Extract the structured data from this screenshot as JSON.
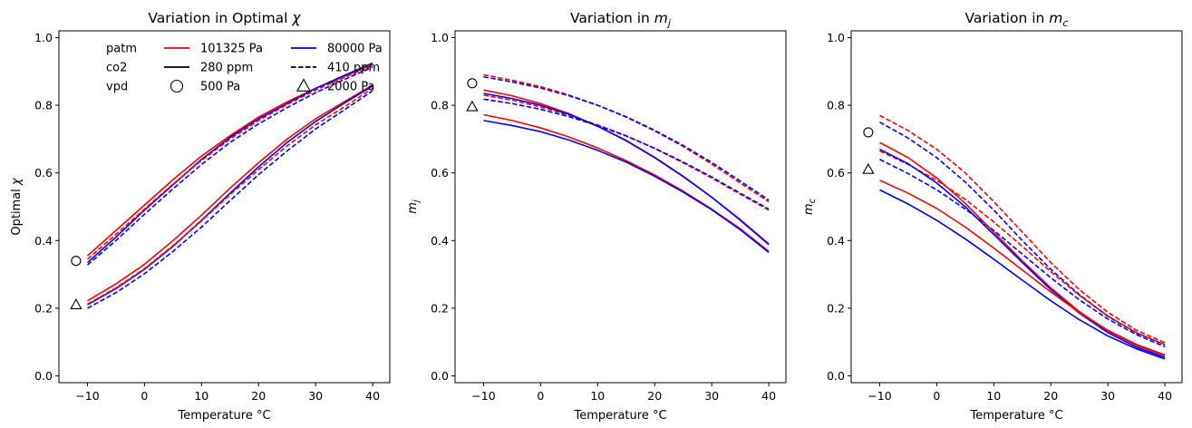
{
  "figure": {
    "x_ticks": [
      "−10",
      "0",
      "10",
      "20",
      "30",
      "40"
    ],
    "y_ticks": [
      "0.0",
      "0.2",
      "0.4",
      "0.6",
      "0.8",
      "1.0"
    ]
  },
  "legend": {
    "rows": [
      {
        "group": "patm",
        "a_label": "101325 Pa",
        "a_style": "red-line",
        "b_label": "80000 Pa",
        "b_style": "blue-line"
      },
      {
        "group": "co2",
        "a_label": "280 ppm",
        "a_style": "black-solid",
        "b_label": "410 ppm",
        "b_style": "black-dashed"
      },
      {
        "group": "vpd",
        "a_label": "500 Pa",
        "a_style": "circle-marker",
        "b_label": "2000 Pa",
        "b_style": "triangle-marker"
      }
    ]
  },
  "colors": {
    "patm_101325": "#ff0000",
    "patm_80000": "#0000ff",
    "axes": "#000000"
  },
  "chart_data": [
    {
      "type": "line",
      "title": "Variation in Optimal χ",
      "title_main": "Variation in Optimal ",
      "title_symbol": "χ",
      "xlabel": "Temperature °C",
      "ylabel_main": "Optimal ",
      "ylabel_symbol": "χ",
      "xlim": [
        -15,
        43
      ],
      "ylim": [
        -0.02,
        1.02
      ],
      "x": [
        -10,
        -5,
        0,
        5,
        10,
        15,
        20,
        25,
        30,
        35,
        40
      ],
      "markers": [
        {
          "shape": "circle",
          "x": -12,
          "y": 0.34
        },
        {
          "shape": "triangle",
          "x": -12,
          "y": 0.21
        }
      ],
      "series": [
        {
          "patm": "101325 Pa",
          "co2": "280 ppm",
          "vpd": "500 Pa",
          "color": "#ff0000",
          "dash": false,
          "values": [
            0.355,
            0.43,
            0.505,
            0.58,
            0.65,
            0.71,
            0.765,
            0.81,
            0.85,
            0.885,
            0.92
          ]
        },
        {
          "patm": "80000 Pa",
          "co2": "280 ppm",
          "vpd": "500 Pa",
          "color": "#0000ff",
          "dash": false,
          "values": [
            0.335,
            0.41,
            0.49,
            0.565,
            0.64,
            0.705,
            0.76,
            0.805,
            0.85,
            0.888,
            0.925
          ]
        },
        {
          "patm": "101325 Pa",
          "co2": "410 ppm",
          "vpd": "500 Pa",
          "color": "#ff0000",
          "dash": true,
          "values": [
            0.345,
            0.418,
            0.493,
            0.567,
            0.637,
            0.7,
            0.755,
            0.802,
            0.845,
            0.882,
            0.918
          ]
        },
        {
          "patm": "80000 Pa",
          "co2": "410 ppm",
          "vpd": "500 Pa",
          "color": "#0000ff",
          "dash": true,
          "values": [
            0.328,
            0.4,
            0.478,
            0.553,
            0.625,
            0.69,
            0.745,
            0.793,
            0.837,
            0.876,
            0.913
          ]
        },
        {
          "patm": "101325 Pa",
          "co2": "280 ppm",
          "vpd": "2000 Pa",
          "color": "#ff0000",
          "dash": false,
          "values": [
            0.222,
            0.272,
            0.33,
            0.4,
            0.475,
            0.555,
            0.63,
            0.7,
            0.76,
            0.81,
            0.86
          ]
        },
        {
          "patm": "80000 Pa",
          "co2": "280 ppm",
          "vpd": "2000 Pa",
          "color": "#0000ff",
          "dash": false,
          "values": [
            0.21,
            0.258,
            0.315,
            0.383,
            0.46,
            0.54,
            0.618,
            0.69,
            0.752,
            0.806,
            0.857
          ]
        },
        {
          "patm": "101325 Pa",
          "co2": "410 ppm",
          "vpd": "2000 Pa",
          "color": "#ff0000",
          "dash": true,
          "values": [
            0.212,
            0.26,
            0.317,
            0.385,
            0.458,
            0.536,
            0.61,
            0.68,
            0.742,
            0.795,
            0.85
          ]
        },
        {
          "patm": "80000 Pa",
          "co2": "410 ppm",
          "vpd": "2000 Pa",
          "color": "#0000ff",
          "dash": true,
          "values": [
            0.2,
            0.246,
            0.302,
            0.368,
            0.44,
            0.518,
            0.595,
            0.665,
            0.73,
            0.786,
            0.843
          ]
        }
      ]
    },
    {
      "type": "line",
      "title": "Variation in m_j",
      "title_main": "Variation in ",
      "title_symbol": "m",
      "title_sub": "j",
      "xlabel": "Temperature °C",
      "ylabel_symbol": "m",
      "ylabel_sub": "j",
      "xlim": [
        -15,
        43
      ],
      "ylim": [
        -0.02,
        1.02
      ],
      "x": [
        -10,
        -5,
        0,
        5,
        10,
        15,
        20,
        25,
        30,
        35,
        40
      ],
      "markers": [
        {
          "shape": "circle",
          "x": -12,
          "y": 0.865
        },
        {
          "shape": "triangle",
          "x": -12,
          "y": 0.795
        }
      ],
      "series": [
        {
          "patm": "101325 Pa",
          "co2": "410 ppm",
          "vpd": "500 Pa",
          "color": "#ff0000",
          "dash": true,
          "values": [
            0.89,
            0.874,
            0.855,
            0.83,
            0.8,
            0.765,
            0.724,
            0.678,
            0.626,
            0.57,
            0.515
          ]
        },
        {
          "patm": "80000 Pa",
          "co2": "410 ppm",
          "vpd": "500 Pa",
          "color": "#0000ff",
          "dash": true,
          "values": [
            0.884,
            0.869,
            0.851,
            0.828,
            0.8,
            0.766,
            0.726,
            0.681,
            0.631,
            0.576,
            0.52
          ]
        },
        {
          "patm": "101325 Pa",
          "co2": "410 ppm",
          "vpd": "2000 Pa",
          "color": "#ff0000",
          "dash": true,
          "values": [
            0.83,
            0.815,
            0.795,
            0.77,
            0.742,
            0.71,
            0.672,
            0.63,
            0.585,
            0.537,
            0.49
          ]
        },
        {
          "patm": "80000 Pa",
          "co2": "410 ppm",
          "vpd": "2000 Pa",
          "color": "#0000ff",
          "dash": true,
          "values": [
            0.818,
            0.805,
            0.788,
            0.766,
            0.74,
            0.709,
            0.673,
            0.632,
            0.588,
            0.54,
            0.493
          ]
        },
        {
          "patm": "101325 Pa",
          "co2": "280 ppm",
          "vpd": "500 Pa",
          "color": "#ff0000",
          "dash": false,
          "values": [
            0.845,
            0.828,
            0.805,
            0.775,
            0.738,
            0.695,
            0.645,
            0.589,
            0.528,
            0.462,
            0.39
          ]
        },
        {
          "patm": "80000 Pa",
          "co2": "280 ppm",
          "vpd": "500 Pa",
          "color": "#0000ff",
          "dash": false,
          "values": [
            0.835,
            0.82,
            0.8,
            0.773,
            0.738,
            0.696,
            0.646,
            0.59,
            0.528,
            0.46,
            0.388
          ]
        },
        {
          "patm": "101325 Pa",
          "co2": "280 ppm",
          "vpd": "2000 Pa",
          "color": "#ff0000",
          "dash": false,
          "values": [
            0.772,
            0.755,
            0.733,
            0.706,
            0.674,
            0.636,
            0.594,
            0.546,
            0.493,
            0.435,
            0.368
          ]
        },
        {
          "patm": "80000 Pa",
          "co2": "280 ppm",
          "vpd": "2000 Pa",
          "color": "#0000ff",
          "dash": false,
          "values": [
            0.755,
            0.74,
            0.722,
            0.697,
            0.667,
            0.632,
            0.59,
            0.543,
            0.491,
            0.432,
            0.365
          ]
        }
      ]
    },
    {
      "type": "line",
      "title": "Variation in m_c",
      "title_main": "Variation in ",
      "title_symbol": "m",
      "title_sub": "c",
      "xlabel": "Temperature °C",
      "ylabel_symbol": "m",
      "ylabel_sub": "c",
      "xlim": [
        -15,
        43
      ],
      "ylim": [
        -0.02,
        1.02
      ],
      "x": [
        -10,
        -5,
        0,
        5,
        10,
        15,
        20,
        25,
        30,
        35,
        40
      ],
      "markers": [
        {
          "shape": "circle",
          "x": -12,
          "y": 0.72
        },
        {
          "shape": "triangle",
          "x": -12,
          "y": 0.61
        }
      ],
      "series": [
        {
          "patm": "101325 Pa",
          "co2": "410 ppm",
          "vpd": "500 Pa",
          "color": "#ff0000",
          "dash": true,
          "values": [
            0.77,
            0.725,
            0.67,
            0.6,
            0.515,
            0.425,
            0.335,
            0.255,
            0.188,
            0.135,
            0.098
          ]
        },
        {
          "patm": "80000 Pa",
          "co2": "410 ppm",
          "vpd": "500 Pa",
          "color": "#0000ff",
          "dash": true,
          "values": [
            0.75,
            0.703,
            0.645,
            0.573,
            0.49,
            0.4,
            0.315,
            0.24,
            0.176,
            0.127,
            0.092
          ]
        },
        {
          "patm": "101325 Pa",
          "co2": "410 ppm",
          "vpd": "2000 Pa",
          "color": "#ff0000",
          "dash": true,
          "values": [
            0.665,
            0.625,
            0.578,
            0.522,
            0.455,
            0.383,
            0.308,
            0.238,
            0.177,
            0.128,
            0.092
          ]
        },
        {
          "patm": "80000 Pa",
          "co2": "410 ppm",
          "vpd": "2000 Pa",
          "color": "#0000ff",
          "dash": true,
          "values": [
            0.64,
            0.598,
            0.55,
            0.493,
            0.43,
            0.36,
            0.29,
            0.225,
            0.168,
            0.122,
            0.086
          ]
        },
        {
          "patm": "101325 Pa",
          "co2": "280 ppm",
          "vpd": "500 Pa",
          "color": "#ff0000",
          "dash": false,
          "values": [
            0.69,
            0.645,
            0.585,
            0.51,
            0.425,
            0.34,
            0.26,
            0.19,
            0.133,
            0.09,
            0.06
          ]
        },
        {
          "patm": "80000 Pa",
          "co2": "280 ppm",
          "vpd": "500 Pa",
          "color": "#0000ff",
          "dash": false,
          "values": [
            0.67,
            0.627,
            0.57,
            0.5,
            0.418,
            0.335,
            0.255,
            0.185,
            0.128,
            0.085,
            0.055
          ]
        },
        {
          "patm": "101325 Pa",
          "co2": "280 ppm",
          "vpd": "2000 Pa",
          "color": "#ff0000",
          "dash": false,
          "values": [
            0.578,
            0.54,
            0.495,
            0.44,
            0.378,
            0.313,
            0.248,
            0.187,
            0.135,
            0.093,
            0.062
          ]
        },
        {
          "patm": "80000 Pa",
          "co2": "280 ppm",
          "vpd": "2000 Pa",
          "color": "#0000ff",
          "dash": false,
          "values": [
            0.55,
            0.508,
            0.46,
            0.405,
            0.345,
            0.283,
            0.222,
            0.166,
            0.118,
            0.08,
            0.05
          ]
        }
      ]
    }
  ]
}
